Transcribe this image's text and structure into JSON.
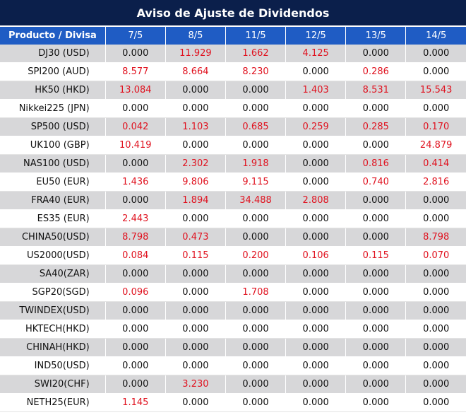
{
  "title": "Aviso de Ajuste de Dividendos",
  "header": {
    "product_label": "Producto / Divisa",
    "dates": [
      "7/5",
      "8/5",
      "11/5",
      "12/5",
      "13/5",
      "14/5"
    ]
  },
  "colors": {
    "title_bg": "#0b1f4b",
    "header_bg": "#1f5cc4",
    "shade": "#d7d7d9",
    "highlight_red": "#e0121f"
  },
  "rows": [
    {
      "product": "DJ30 (USD)",
      "values": [
        "0.000",
        "11.929",
        "1.662",
        "4.125",
        "0.000",
        "0.000"
      ]
    },
    {
      "product": "SPI200 (AUD)",
      "values": [
        "8.577",
        "8.664",
        "8.230",
        "0.000",
        "0.286",
        "0.000"
      ]
    },
    {
      "product": "HK50 (HKD)",
      "values": [
        "13.084",
        "0.000",
        "0.000",
        "1.403",
        "8.531",
        "15.543"
      ]
    },
    {
      "product": "Nikkei225 (JPN)",
      "values": [
        "0.000",
        "0.000",
        "0.000",
        "0.000",
        "0.000",
        "0.000"
      ]
    },
    {
      "product": "SP500 (USD)",
      "values": [
        "0.042",
        "1.103",
        "0.685",
        "0.259",
        "0.285",
        "0.170"
      ]
    },
    {
      "product": "UK100 (GBP)",
      "values": [
        "10.419",
        "0.000",
        "0.000",
        "0.000",
        "0.000",
        "24.879"
      ]
    },
    {
      "product": "NAS100 (USD)",
      "values": [
        "0.000",
        "2.302",
        "1.918",
        "0.000",
        "0.816",
        "0.414"
      ]
    },
    {
      "product": "EU50 (EUR)",
      "values": [
        "1.436",
        "9.806",
        "9.115",
        "0.000",
        "0.740",
        "2.816"
      ]
    },
    {
      "product": "FRA40 (EUR)",
      "values": [
        "0.000",
        "1.894",
        "34.488",
        "2.808",
        "0.000",
        "0.000"
      ]
    },
    {
      "product": "ES35 (EUR)",
      "values": [
        "2.443",
        "0.000",
        "0.000",
        "0.000",
        "0.000",
        "0.000"
      ]
    },
    {
      "product": "CHINA50(USD)",
      "values": [
        "8.798",
        "0.473",
        "0.000",
        "0.000",
        "0.000",
        "8.798"
      ]
    },
    {
      "product": "US2000(USD)",
      "values": [
        "0.084",
        "0.115",
        "0.200",
        "0.106",
        "0.115",
        "0.070"
      ]
    },
    {
      "product": "SA40(ZAR)",
      "values": [
        "0.000",
        "0.000",
        "0.000",
        "0.000",
        "0.000",
        "0.000"
      ]
    },
    {
      "product": "SGP20(SGD)",
      "values": [
        "0.096",
        "0.000",
        "1.708",
        "0.000",
        "0.000",
        "0.000"
      ]
    },
    {
      "product": "TWINDEX(USD)",
      "values": [
        "0.000",
        "0.000",
        "0.000",
        "0.000",
        "0.000",
        "0.000"
      ]
    },
    {
      "product": "HKTECH(HKD)",
      "values": [
        "0.000",
        "0.000",
        "0.000",
        "0.000",
        "0.000",
        "0.000"
      ]
    },
    {
      "product": "CHINAH(HKD)",
      "values": [
        "0.000",
        "0.000",
        "0.000",
        "0.000",
        "0.000",
        "0.000"
      ]
    },
    {
      "product": "IND50(USD)",
      "values": [
        "0.000",
        "0.000",
        "0.000",
        "0.000",
        "0.000",
        "0.000"
      ]
    },
    {
      "product": "SWI20(CHF)",
      "values": [
        "0.000",
        "3.230",
        "0.000",
        "0.000",
        "0.000",
        "0.000"
      ]
    },
    {
      "product": "NETH25(EUR)",
      "values": [
        "1.145",
        "0.000",
        "0.000",
        "0.000",
        "0.000",
        "0.000"
      ]
    }
  ]
}
